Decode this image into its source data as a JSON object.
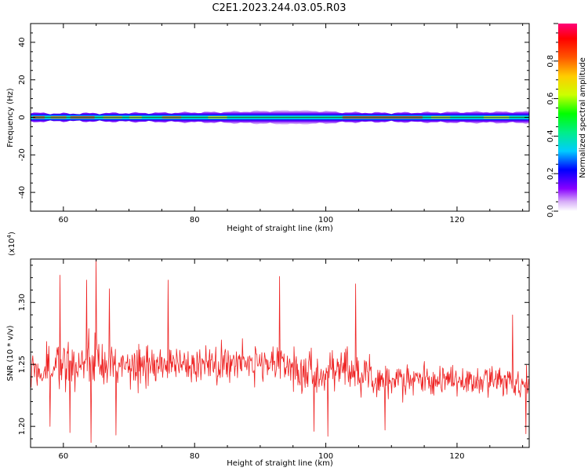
{
  "figure_title": "C2E1.2023.244.03.05.R03",
  "chart_data": [
    {
      "type": "heatmap",
      "xlabel": "Height of straight line (km)",
      "ylabel": "Frequency (Hz)",
      "xlim": [
        55,
        131
      ],
      "ylim": [
        -50,
        50
      ],
      "x_ticks": [
        "60",
        "80",
        "100",
        "120"
      ],
      "y_ticks": [
        "-40",
        "-20",
        "0",
        "20",
        "40"
      ],
      "band_half_width_hz": [
        [
          55,
          2.4
        ],
        [
          60,
          2.0
        ],
        [
          65,
          2.2
        ],
        [
          70,
          2.3
        ],
        [
          75,
          2.4
        ],
        [
          80,
          2.6
        ],
        [
          85,
          2.9
        ],
        [
          90,
          3.3
        ],
        [
          95,
          3.8
        ],
        [
          100,
          3.2
        ],
        [
          103,
          2.6
        ],
        [
          110,
          2.4
        ],
        [
          115,
          2.6
        ],
        [
          120,
          2.8
        ],
        [
          125,
          2.9
        ],
        [
          131,
          3.0
        ]
      ],
      "colorbar": {
        "label": "Normalized spectral amplitude",
        "ticks": [
          "0.0",
          "0.2",
          "0.4",
          "0.6",
          "0.8"
        ],
        "range": [
          0,
          1
        ]
      }
    },
    {
      "type": "line",
      "xlabel": "Height of straight line (km)",
      "ylabel": "SNR (10 * v/v)",
      "y_scale_label_base": "(x10",
      "y_scale_label_exp": "4",
      "y_scale_label_close": ")",
      "xlim": [
        55,
        131
      ],
      "ylim": [
        1.183,
        1.335
      ],
      "x_ticks": [
        "60",
        "80",
        "100",
        "120"
      ],
      "y_ticks": [
        "1.20",
        "1.25",
        "1.30"
      ],
      "series": [
        {
          "color": "#ee2222",
          "x_range": [
            55,
            131
          ],
          "points": 900,
          "trend": [
            [
              55,
              1.248
            ],
            [
              62,
              1.247
            ],
            [
              66,
              1.252
            ],
            [
              72,
              1.248
            ],
            [
              80,
              1.25
            ],
            [
              88,
              1.252
            ],
            [
              94,
              1.249
            ],
            [
              98,
              1.242
            ],
            [
              103,
              1.247
            ],
            [
              108,
              1.236
            ],
            [
              115,
              1.238
            ],
            [
              122,
              1.236
            ],
            [
              131,
              1.234
            ]
          ],
          "noise_amplitude": [
            [
              55,
              0.02
            ],
            [
              65,
              0.026
            ],
            [
              75,
              0.019
            ],
            [
              85,
              0.019
            ],
            [
              95,
              0.019
            ],
            [
              100,
              0.022
            ],
            [
              108,
              0.017
            ],
            [
              120,
              0.014
            ],
            [
              131,
              0.015
            ]
          ],
          "peaks": [
            [
              65,
              1.335
            ],
            [
              59.5,
              1.322
            ],
            [
              63.5,
              1.318
            ],
            [
              67,
              1.311
            ],
            [
              76,
              1.318
            ],
            [
              93,
              1.321
            ],
            [
              104.5,
              1.315
            ],
            [
              128.5,
              1.29
            ]
          ],
          "troughs": [
            [
              64.2,
              1.187
            ],
            [
              58,
              1.2
            ],
            [
              61,
              1.195
            ],
            [
              68,
              1.193
            ],
            [
              98.2,
              1.196
            ],
            [
              100.3,
              1.192
            ],
            [
              109,
              1.197
            ],
            [
              130.5,
              1.194
            ]
          ]
        }
      ]
    }
  ]
}
